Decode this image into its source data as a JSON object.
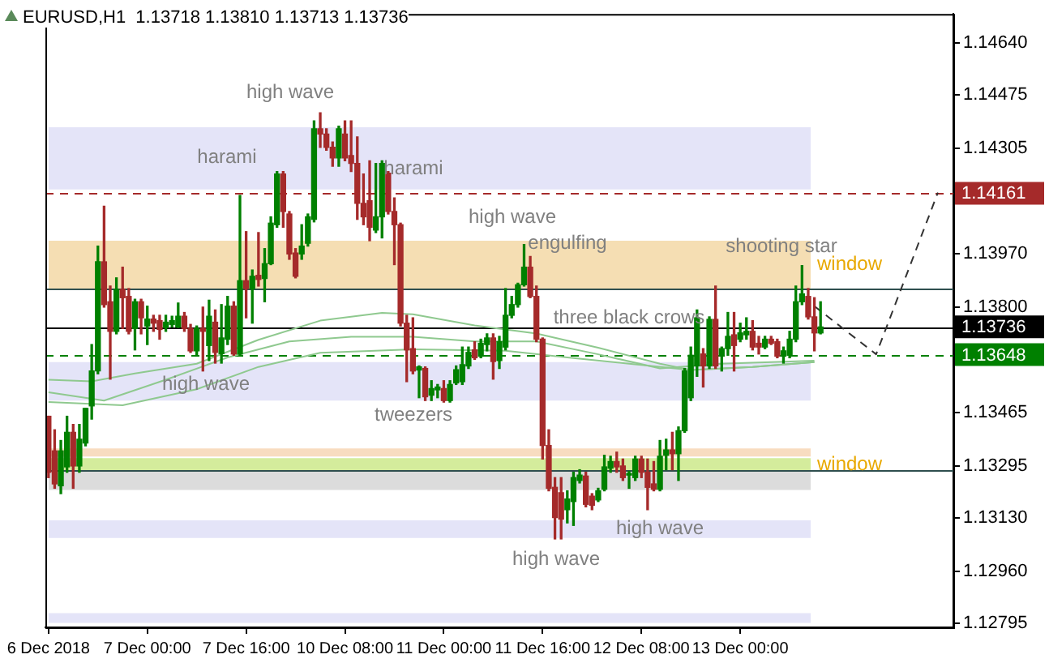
{
  "chart_data": {
    "type": "candlestick",
    "title": "EURUSD,H1  1.13718 1.13810 1.13713 1.13736",
    "categories": [
      "6 Dec 2018",
      null,
      null,
      null,
      null,
      null,
      null,
      null,
      null,
      null,
      null,
      null,
      null,
      null,
      null,
      null,
      "7 Dec 00:00",
      null,
      null,
      null,
      null,
      null,
      null,
      null,
      null,
      null,
      null,
      null,
      null,
      null,
      null,
      null,
      "7 Dec 16:00",
      null,
      null,
      null,
      null,
      null,
      null,
      null,
      null,
      null,
      null,
      null,
      null,
      null,
      null,
      null,
      "10 Dec 08:00",
      null,
      null,
      null,
      null,
      null,
      null,
      null,
      null,
      null,
      null,
      null,
      null,
      null,
      null,
      null,
      "11 Dec 00:00",
      null,
      null,
      null,
      null,
      null,
      null,
      null,
      null,
      null,
      null,
      null,
      null,
      null,
      null,
      null,
      "11 Dec 16:00",
      null,
      null,
      null,
      null,
      null,
      null,
      null,
      null,
      null,
      null,
      null,
      null,
      null,
      null,
      null,
      "12 Dec 08:00",
      null,
      null,
      null,
      null,
      null,
      null,
      null,
      null,
      null,
      null,
      null,
      null,
      null,
      null,
      null,
      "13 Dec 00:00",
      null,
      null,
      null,
      null,
      null,
      null,
      null,
      null,
      null,
      null,
      null,
      null,
      null,
      null,
      null,
      null,
      null,
      null,
      null,
      null,
      null,
      null,
      null,
      null,
      null,
      null,
      null,
      null,
      null,
      null,
      null,
      null,
      null,
      null
    ],
    "ohlc": [
      [
        1.13452,
        1.13452,
        1.13257,
        1.13274
      ],
      [
        1.13342,
        1.13409,
        1.13223,
        1.13237
      ],
      [
        1.13231,
        1.13375,
        1.13206,
        1.13342
      ],
      [
        1.13291,
        1.13452,
        1.13274,
        1.13401
      ],
      [
        1.13401,
        1.13426,
        1.13223,
        1.13294
      ],
      [
        1.13294,
        1.13426,
        1.13274,
        1.13379
      ],
      [
        1.13367,
        1.13477,
        1.13358,
        1.13477
      ],
      [
        1.13485,
        1.1368,
        1.13443,
        1.13596
      ],
      [
        1.13596,
        1.13993,
        1.13587,
        1.13943
      ],
      [
        1.13943,
        1.1412,
        1.13799,
        1.13807
      ],
      [
        1.13816,
        1.13866,
        1.1357,
        1.13722
      ],
      [
        1.13722,
        1.13892,
        1.13714,
        1.13855
      ],
      [
        1.13855,
        1.13926,
        1.13731,
        1.13829
      ],
      [
        1.13833,
        1.13858,
        1.13714,
        1.13722
      ],
      [
        1.13731,
        1.13824,
        1.13663,
        1.13816
      ],
      [
        1.13816,
        1.13824,
        1.13714,
        1.13765
      ],
      [
        1.13739,
        1.13802,
        1.1368,
        1.13761
      ],
      [
        1.13761,
        1.13773,
        1.13722,
        1.13748
      ],
      [
        1.13756,
        1.13773,
        1.13697,
        1.13728
      ],
      [
        1.13734,
        1.13773,
        1.13722,
        1.13751
      ],
      [
        1.13744,
        1.1377,
        1.13736,
        1.13756
      ],
      [
        1.13736,
        1.13812,
        1.13734,
        1.1377
      ],
      [
        1.1377,
        1.13782,
        1.13722,
        1.13731
      ],
      [
        1.13731,
        1.13744,
        1.13655,
        1.1366
      ],
      [
        1.1366,
        1.13739,
        1.13646,
        1.13731
      ],
      [
        1.13731,
        1.13799,
        1.13596,
        1.13722
      ],
      [
        1.13677,
        1.13821,
        1.13629,
        1.1377
      ],
      [
        1.13751,
        1.1379,
        1.13621,
        1.13655
      ],
      [
        1.13651,
        1.13807,
        1.13621,
        1.13701
      ],
      [
        1.13697,
        1.13833,
        1.1368,
        1.13802
      ],
      [
        1.13802,
        1.13816,
        1.13646,
        1.1365
      ],
      [
        1.1365,
        1.14154,
        1.13646,
        1.13883
      ],
      [
        1.13883,
        1.14039,
        1.13765,
        1.13858
      ],
      [
        1.13858,
        1.13917,
        1.13748,
        1.13897
      ],
      [
        1.139,
        1.14036,
        1.13866,
        1.13887
      ],
      [
        1.1389,
        1.13985,
        1.13816,
        1.13937
      ],
      [
        1.13937,
        1.14086,
        1.13934,
        1.14066
      ],
      [
        1.14061,
        1.1423,
        1.14053,
        1.14222
      ],
      [
        1.14222,
        1.1423,
        1.14053,
        1.14103
      ],
      [
        1.14095,
        1.14103,
        1.13951,
        1.13968
      ],
      [
        1.13971,
        1.13985,
        1.13892,
        1.13897
      ],
      [
        1.13968,
        1.14061,
        1.13951,
        1.13993
      ],
      [
        1.14002,
        1.14095,
        1.13993,
        1.14086
      ],
      [
        1.14078,
        1.14391,
        1.1407,
        1.14366
      ],
      [
        1.14366,
        1.14417,
        1.14307,
        1.14349
      ],
      [
        1.14349,
        1.14366,
        1.14298,
        1.14307
      ],
      [
        1.14307,
        1.14324,
        1.14247,
        1.14273
      ],
      [
        1.14273,
        1.14374,
        1.14247,
        1.14366
      ],
      [
        1.14349,
        1.14391,
        1.14264,
        1.14273
      ],
      [
        1.14281,
        1.14391,
        1.1423,
        1.14256
      ],
      [
        1.14256,
        1.1434,
        1.14078,
        1.14129
      ],
      [
        1.14129,
        1.14222,
        1.14061,
        1.14086
      ],
      [
        1.14137,
        1.14264,
        1.1401,
        1.14053
      ],
      [
        1.14044,
        1.14256,
        1.14036,
        1.14086
      ],
      [
        1.14086,
        1.14264,
        1.14019,
        1.14256
      ],
      [
        1.14225,
        1.1423,
        1.14095,
        1.14103
      ],
      [
        1.14103,
        1.14146,
        1.13934,
        1.14061
      ],
      [
        1.14061,
        1.14066,
        1.13739,
        1.13748
      ],
      [
        1.13748,
        1.13773,
        1.13562,
        1.13663
      ],
      [
        1.13667,
        1.13765,
        1.13587,
        1.13596
      ],
      [
        1.13599,
        1.13612,
        1.13511,
        1.13609
      ],
      [
        1.13604,
        1.13609,
        1.13502,
        1.13514
      ],
      [
        1.13519,
        1.13565,
        1.13502,
        1.1354
      ],
      [
        1.13536,
        1.13553,
        1.13511,
        1.13545
      ],
      [
        1.1354,
        1.13565,
        1.13497,
        1.13502
      ],
      [
        1.13502,
        1.13565,
        1.13497,
        1.13553
      ],
      [
        1.13558,
        1.13612,
        1.13553,
        1.136
      ],
      [
        1.13562,
        1.13672,
        1.13553,
        1.13616
      ],
      [
        1.13612,
        1.13672,
        1.13604,
        1.13655
      ],
      [
        1.13663,
        1.13689,
        1.13633,
        1.13638
      ],
      [
        1.13643,
        1.13697,
        1.13638,
        1.13684
      ],
      [
        1.1368,
        1.13714,
        1.1366,
        1.13701
      ],
      [
        1.13701,
        1.13714,
        1.1357,
        1.13626
      ],
      [
        1.13629,
        1.13706,
        1.13604,
        1.13689
      ],
      [
        1.13672,
        1.13858,
        1.13663,
        1.13773
      ],
      [
        1.13773,
        1.13833,
        1.13765,
        1.13807
      ],
      [
        1.13807,
        1.13875,
        1.13799,
        1.1387
      ],
      [
        1.1387,
        1.13998,
        1.13866,
        1.13926
      ],
      [
        1.13926,
        1.1396,
        1.13829,
        1.13833
      ],
      [
        1.13833,
        1.13866,
        1.13689,
        1.13697
      ],
      [
        1.13697,
        1.13701,
        1.13316,
        1.13359
      ],
      [
        1.13359,
        1.13409,
        1.13215,
        1.13223
      ],
      [
        1.13226,
        1.13257,
        1.13062,
        1.1313
      ],
      [
        1.13209,
        1.13257,
        1.13062,
        1.13125
      ],
      [
        1.13155,
        1.13215,
        1.13113,
        1.13189
      ],
      [
        1.13181,
        1.13274,
        1.13105,
        1.13257
      ],
      [
        1.13248,
        1.13282,
        1.1324,
        1.13265
      ],
      [
        1.13262,
        1.13274,
        1.13164,
        1.13172
      ],
      [
        1.13198,
        1.13206,
        1.13155,
        1.13169
      ],
      [
        1.13186,
        1.13223,
        1.13181,
        1.13215
      ],
      [
        1.1322,
        1.13328,
        1.13215,
        1.13291
      ],
      [
        1.13287,
        1.13325,
        1.13274,
        1.13308
      ],
      [
        1.13308,
        1.13338,
        1.13274,
        1.13291
      ],
      [
        1.13294,
        1.13316,
        1.13248,
        1.13257
      ],
      [
        1.13265,
        1.13277,
        1.13223,
        1.13267
      ],
      [
        1.13257,
        1.13325,
        1.13248,
        1.13316
      ],
      [
        1.13316,
        1.13325,
        1.13257,
        1.13274
      ],
      [
        1.13274,
        1.13316,
        1.13155,
        1.13226
      ],
      [
        1.13237,
        1.13308,
        1.13215,
        1.1322
      ],
      [
        1.1322,
        1.13375,
        1.13215,
        1.13325
      ],
      [
        1.13328,
        1.13379,
        1.13282,
        1.13345
      ],
      [
        1.13345,
        1.13401,
        1.13282,
        1.13333
      ],
      [
        1.13333,
        1.13418,
        1.13248,
        1.13406
      ],
      [
        1.13406,
        1.13604,
        1.13401,
        1.13596
      ],
      [
        1.13511,
        1.13672,
        1.13502,
        1.13646
      ],
      [
        1.13612,
        1.1379,
        1.13579,
        1.13765
      ],
      [
        1.1365,
        1.13667,
        1.13545,
        1.13612
      ],
      [
        1.13612,
        1.13768,
        1.13604,
        1.1376
      ],
      [
        1.1376,
        1.13866,
        1.13604,
        1.13612
      ],
      [
        1.13646,
        1.13672,
        1.13596,
        1.13667
      ],
      [
        1.13667,
        1.13782,
        1.13646,
        1.13706
      ],
      [
        1.13711,
        1.13782,
        1.13596,
        1.13677
      ],
      [
        1.13697,
        1.13748,
        1.13689,
        1.13717
      ],
      [
        1.13711,
        1.13765,
        1.13697,
        1.13722
      ],
      [
        1.13722,
        1.13756,
        1.13663,
        1.13672
      ],
      [
        1.13684,
        1.13706,
        1.1365,
        1.13672
      ],
      [
        1.13672,
        1.13706,
        1.13667,
        1.13697
      ],
      [
        1.13697,
        1.13706,
        1.1368,
        1.13684
      ],
      [
        1.13689,
        1.13697,
        1.13638,
        1.13643
      ],
      [
        1.13643,
        1.13672,
        1.13621,
        1.1366
      ],
      [
        1.13646,
        1.13722,
        1.13638,
        1.13697
      ],
      [
        1.13697,
        1.13866,
        1.13689,
        1.13816
      ],
      [
        1.13816,
        1.13931,
        1.13807,
        1.13841
      ],
      [
        1.13833,
        1.13858,
        1.13761,
        1.13768
      ],
      [
        1.13768,
        1.13829,
        1.1366,
        1.13717
      ],
      [
        1.13717,
        1.13816,
        1.13714,
        1.13736
      ],
      null,
      null,
      null,
      null,
      null,
      null,
      null,
      null,
      null,
      null,
      null,
      null,
      null,
      null,
      null,
      null,
      null,
      null,
      null,
      null,
      null
    ],
    "series": [
      {
        "type": "line",
        "color": "#8fc98f",
        "values": [
          1.13568,
          null,
          null,
          null,
          null,
          null,
          null,
          1.13563,
          null,
          null,
          null,
          null,
          null,
          null,
          1.13588,
          null,
          null,
          null,
          null,
          null,
          null,
          null,
          null,
          null,
          1.13619,
          null,
          null,
          null,
          null,
          null,
          null,
          null,
          null,
          null,
          1.13695,
          null,
          null,
          null,
          null,
          null,
          null,
          null,
          null,
          null,
          1.13756,
          null,
          null,
          null,
          null,
          null,
          null,
          null,
          null,
          null,
          1.13781,
          null,
          null,
          null,
          null,
          1.13776,
          null,
          null,
          null,
          null,
          null,
          null,
          null,
          null,
          null,
          1.13741,
          null,
          null,
          null,
          null,
          null,
          null,
          null,
          null,
          null,
          1.13715,
          null,
          null,
          null,
          null,
          null,
          null,
          null,
          null,
          null,
          1.1367,
          null,
          null,
          null,
          null,
          null,
          null,
          null,
          null,
          null,
          1.13619,
          null,
          null,
          null,
          null,
          1.13599,
          null,
          null,
          null,
          null,
          null,
          null,
          null,
          null,
          null,
          1.13609,
          null,
          null,
          null,
          null,
          null,
          null,
          null,
          null,
          null,
          1.13624,
          null,
          null,
          null,
          null,
          null,
          null,
          null,
          null,
          null,
          null,
          null,
          null,
          null,
          null,
          null,
          null,
          null,
          null,
          null,
          null,
          null,
          null
        ]
      },
      {
        "type": "line",
        "color": "#8fc98f",
        "values": [
          1.13528,
          null,
          null,
          null,
          null,
          null,
          null,
          null,
          null,
          1.13502,
          null,
          null,
          null,
          null,
          null,
          null,
          null,
          null,
          null,
          1.13568,
          null,
          null,
          null,
          null,
          null,
          null,
          null,
          null,
          null,
          1.13639,
          null,
          null,
          null,
          null,
          null,
          null,
          null,
          null,
          null,
          1.1369,
          null,
          null,
          null,
          null,
          null,
          null,
          null,
          null,
          null,
          1.13705,
          null,
          null,
          null,
          null,
          null,
          null,
          null,
          null,
          null,
          1.13705,
          null,
          null,
          null,
          null,
          null,
          null,
          null,
          null,
          null,
          1.1369,
          null,
          null,
          null,
          null,
          null,
          null,
          null,
          null,
          null,
          1.1369,
          null,
          null,
          null,
          null,
          null,
          null,
          null,
          null,
          null,
          1.13649,
          null,
          null,
          null,
          null,
          null,
          null,
          null,
          null,
          null,
          1.13604,
          null,
          null,
          null,
          null,
          null,
          null,
          null,
          null,
          null,
          1.13619,
          null,
          null,
          null,
          null,
          null,
          null,
          null,
          null,
          null,
          null,
          null,
          null,
          null,
          null,
          1.13629,
          null,
          null,
          null,
          null,
          null,
          null,
          null,
          null,
          null,
          null,
          null,
          null,
          null,
          null,
          null,
          null,
          null,
          null,
          null,
          null,
          null,
          null
        ]
      },
      {
        "type": "line",
        "color": "#8fc98f",
        "values": [
          1.13497,
          null,
          null,
          null,
          null,
          null,
          null,
          null,
          null,
          null,
          null,
          null,
          1.13487,
          null,
          null,
          null,
          null,
          null,
          null,
          null,
          null,
          null,
          null,
          null,
          1.13538,
          null,
          null,
          null,
          null,
          null,
          null,
          null,
          null,
          null,
          1.13609,
          null,
          null,
          null,
          null,
          null,
          null,
          null,
          null,
          null,
          1.13654,
          null,
          null,
          null,
          null,
          null,
          null,
          null,
          null,
          null,
          null,
          null,
          null,
          null,
          null,
          1.13665,
          null,
          null,
          null,
          null,
          null,
          null,
          null,
          null,
          null,
          null,
          null,
          null,
          null,
          null,
          1.1366,
          null,
          null,
          null,
          null,
          null,
          null,
          null,
          null,
          null,
          1.13639,
          null,
          null,
          null,
          null,
          null,
          null,
          null,
          null,
          null,
          1.13619,
          null,
          null,
          null,
          null,
          null,
          null,
          null,
          null,
          null,
          1.13599,
          null,
          null,
          null,
          null,
          null,
          null,
          null,
          null,
          null,
          1.13609,
          null,
          null,
          null,
          null,
          null,
          null,
          null,
          null,
          null,
          1.13624,
          null,
          null,
          null,
          null,
          null,
          null,
          null,
          null,
          null,
          null,
          null,
          null,
          null,
          null,
          null,
          null,
          null,
          null,
          null,
          null,
          null,
          null
        ]
      },
      {
        "type": "line",
        "color": "#333333",
        "line_style": "dashed",
        "values": [
          null,
          null,
          null,
          null,
          null,
          null,
          null,
          null,
          null,
          null,
          null,
          null,
          null,
          null,
          null,
          null,
          null,
          null,
          null,
          null,
          null,
          null,
          null,
          null,
          null,
          null,
          null,
          null,
          null,
          null,
          null,
          null,
          null,
          null,
          null,
          null,
          null,
          null,
          null,
          null,
          null,
          null,
          null,
          null,
          null,
          null,
          null,
          null,
          null,
          null,
          null,
          null,
          null,
          null,
          null,
          null,
          null,
          null,
          null,
          null,
          null,
          null,
          null,
          null,
          null,
          null,
          null,
          null,
          null,
          null,
          null,
          null,
          null,
          null,
          null,
          null,
          null,
          null,
          null,
          null,
          null,
          null,
          null,
          null,
          null,
          null,
          null,
          null,
          null,
          null,
          null,
          null,
          null,
          null,
          null,
          null,
          null,
          null,
          null,
          null,
          null,
          null,
          null,
          null,
          null,
          null,
          null,
          null,
          null,
          null,
          null,
          null,
          null,
          null,
          null,
          null,
          null,
          null,
          null,
          null,
          null,
          null,
          null,
          null,
          1.13802,
          null,
          null,
          null,
          null,
          null,
          null,
          null,
          null,
          null,
          1.13649,
          null,
          null,
          null,
          null,
          null,
          null,
          null,
          null,
          null,
          1.14163,
          null,
          null
        ]
      }
    ],
    "marker": "none",
    "ylim": [
      1.12781,
      1.14731
    ],
    "yticks": [
      {
        "value": 1.1464,
        "label": "1.14640"
      },
      {
        "value": 1.14475,
        "label": "1.14475"
      },
      {
        "value": 1.14305,
        "label": "1.14305"
      },
      {
        "value": 1.1397,
        "label": "1.13970"
      },
      {
        "value": 1.138,
        "label": "1.13800"
      },
      {
        "value": 1.13465,
        "label": "1.13465"
      },
      {
        "value": 1.13295,
        "label": "1.13295"
      },
      {
        "value": 1.1313,
        "label": "1.13130"
      },
      {
        "value": 1.1296,
        "label": "1.12960"
      },
      {
        "value": 1.12795,
        "label": "1.12795"
      }
    ],
    "bands": [
      {
        "axis": "y",
        "from": 1.14173,
        "to": 1.14371,
        "color": "#e4e4f8"
      },
      {
        "axis": "y",
        "from": 1.13858,
        "to": 1.1401,
        "color": "#f5deb3",
        "label": "window"
      },
      {
        "axis": "y",
        "from": 1.13502,
        "to": 1.13624,
        "color": "#e4e4f8"
      },
      {
        "axis": "y",
        "from": 1.13324,
        "to": 1.1335,
        "color": "#f8dcc0"
      },
      {
        "axis": "y",
        "from": 1.13279,
        "to": 1.13319,
        "color": "#d4ec9c",
        "label": "window"
      },
      {
        "axis": "y",
        "from": 1.13218,
        "to": 1.13279,
        "color": "#dcdcdc"
      },
      {
        "axis": "y",
        "from": 1.13065,
        "to": 1.13121,
        "color": "#e4e4f8"
      },
      {
        "axis": "y",
        "from": 1.12795,
        "to": 1.12826,
        "color": "#e4e4f8"
      }
    ],
    "ref_lines": [
      {
        "axis": "y",
        "value": 1.14161,
        "label": "1.14161",
        "color": "#a52a2a",
        "line_style": "dashed"
      },
      {
        "axis": "y",
        "value": 1.13858,
        "color": "#2f4f4f",
        "line_style": "solid"
      },
      {
        "axis": "y",
        "value": 1.13736,
        "label": "1.13736",
        "color": "#000000",
        "line_style": "solid"
      },
      {
        "axis": "y",
        "value": 1.13648,
        "label": "1.13648",
        "color": "#008000",
        "line_style": "dashed"
      },
      {
        "axis": "y",
        "value": 1.13279,
        "color": "#2f4f4f",
        "line_style": "solid"
      }
    ],
    "annotations": [
      "high wave",
      "harami",
      "harami",
      "high wave",
      "engulfing",
      "shooting star",
      "three black crows",
      "high wave",
      "tweezers",
      "high wave",
      "high wave"
    ],
    "grid": false,
    "legend": false
  }
}
